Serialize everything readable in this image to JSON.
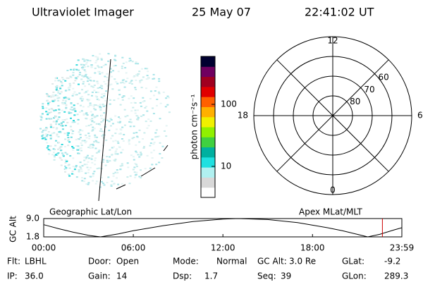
{
  "header": {
    "title": "Ultraviolet Imager",
    "date": "25 May 07",
    "time": "22:41:02 UT"
  },
  "image_panel": {
    "label": "Geographic Lat/Lon"
  },
  "colorbar": {
    "label": "photon cm⁻²s⁻¹",
    "log": true,
    "ylim": [
      3.16,
      593
    ],
    "yticks": [
      10,
      100
    ],
    "colors": [
      "#ffffff",
      "#d8d8d8",
      "#b0f0f0",
      "#20e0e0",
      "#00b0a0",
      "#40d040",
      "#90f000",
      "#f0f000",
      "#ffb000",
      "#ff6000",
      "#e00000",
      "#a00020",
      "#700060",
      "#000030"
    ]
  },
  "polar_plot": {
    "label": "Apex MLat/MLT",
    "rlim": [
      90,
      50
    ],
    "rticks": [
      60,
      70,
      80
    ],
    "mlt_ticks": [
      12,
      18,
      6,
      0
    ]
  },
  "altitude_plot": {
    "ylabel": "GC Alt",
    "ylim": [
      1.8,
      9.0
    ],
    "yticks": [
      {
        "value": 9.0,
        "label": "9.0"
      },
      {
        "value": 1.8,
        "label": "1.8"
      }
    ],
    "xlim": [
      0,
      23.983
    ],
    "xticks": [
      {
        "value": 0,
        "label": "00:00"
      },
      {
        "value": 6,
        "label": "06:00"
      },
      {
        "value": 12,
        "label": "12:00"
      },
      {
        "value": 18,
        "label": "18:00"
      },
      {
        "value": 23.983,
        "label": "23:59"
      }
    ],
    "x": [
      0,
      1,
      2,
      3,
      3.8,
      5,
      6,
      8,
      10,
      12,
      13,
      15,
      17,
      19,
      20,
      21,
      21.7,
      22.5,
      23.5,
      23.983
    ],
    "values": [
      6.6,
      5.0,
      3.6,
      2.4,
      1.8,
      3.0,
      4.2,
      6.2,
      7.8,
      8.8,
      9.0,
      8.6,
      7.4,
      5.4,
      4.2,
      2.8,
      1.8,
      2.8,
      4.6,
      5.4
    ],
    "marker_x": 22.68,
    "marker_color": "#cc0000"
  },
  "info": [
    {
      "label": "Flt:",
      "value": "LBHL"
    },
    {
      "label": "Door:",
      "value": "Open"
    },
    {
      "label": "Mode:",
      "value": "Normal"
    },
    {
      "label": "GC Alt:",
      "value": "3.0 Re"
    },
    {
      "label": "GLat:",
      "value": "-9.2"
    },
    {
      "label": "IP:",
      "value": "36.0"
    },
    {
      "label": "Gain:",
      "value": "14"
    },
    {
      "label": "Dsp:",
      "value": "1.7"
    },
    {
      "label": "Seq:",
      "value": "39"
    },
    {
      "label": "GLon:",
      "value": "289.3"
    }
  ]
}
